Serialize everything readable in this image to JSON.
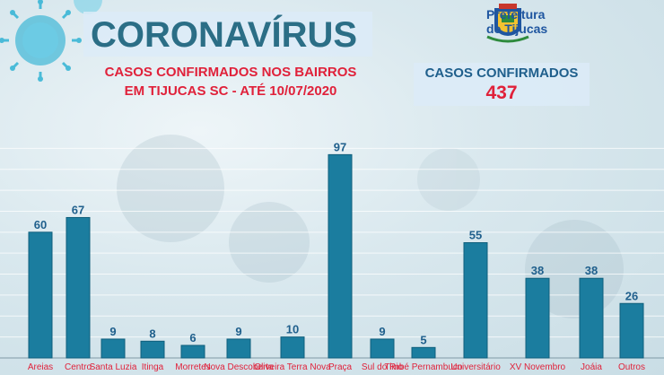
{
  "header": {
    "title": "CORONAVÍRUS",
    "subtitle_line1": "CASOS CONFIRMADOS NOS BAIRROS",
    "subtitle_line2": "EM TIJUCAS SC - ATÉ 10/07/2020"
  },
  "logo": {
    "line1": "Prefeitura",
    "line2": "de Tijucas"
  },
  "kpi": {
    "label": "CASOS CONFIRMADOS",
    "value": "437"
  },
  "colors": {
    "bar": "#1b7d9f",
    "bar_edge": "#0f5f7c",
    "value_label": "#1f5f8c",
    "title": "#2b6e86",
    "accent_red": "#e0213a",
    "grid": "#ffffff"
  },
  "chart_data": {
    "type": "bar",
    "title": "",
    "xlabel": "",
    "ylabel": "",
    "ylim": [
      0,
      110
    ],
    "grid": true,
    "categories": [
      "Areias",
      "Centro",
      "Santa Luzia",
      "Itinga",
      "Morretes",
      "Nova Descoberta",
      "Oliveira Terra Nova",
      "Praça",
      "Sul do Rio",
      "Timbé Pernambuco",
      "Universitário",
      "XV Novembro",
      "Joáia",
      "Outros"
    ],
    "values": [
      60,
      67,
      9,
      8,
      6,
      9,
      10,
      97,
      9,
      5,
      55,
      38,
      38,
      26
    ]
  }
}
